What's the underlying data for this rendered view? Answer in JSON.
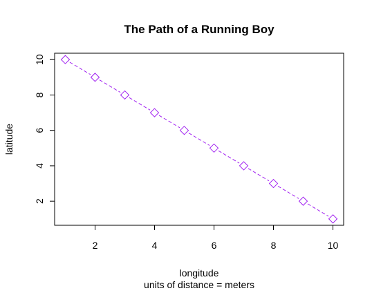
{
  "chart_data": {
    "type": "line",
    "title": "The Path of a Running Boy",
    "xlabel": "longitude",
    "sub": "units of distance = meters",
    "ylabel": "latitude",
    "xlim": [
      0.64,
      10.36
    ],
    "ylim": [
      0.64,
      10.36
    ],
    "x_ticks": [
      2,
      4,
      6,
      8,
      10
    ],
    "y_ticks": [
      2,
      4,
      6,
      8,
      10
    ],
    "grid": false,
    "legend": "none",
    "series": [
      {
        "x": [
          1,
          2,
          3,
          4,
          5,
          6,
          7,
          8,
          9,
          10
        ],
        "y": [
          10,
          9,
          8,
          7,
          6,
          5,
          4,
          3,
          2,
          1
        ],
        "color": "#a020f0",
        "line_style": "dashed",
        "marker": "diamond-open"
      }
    ]
  }
}
